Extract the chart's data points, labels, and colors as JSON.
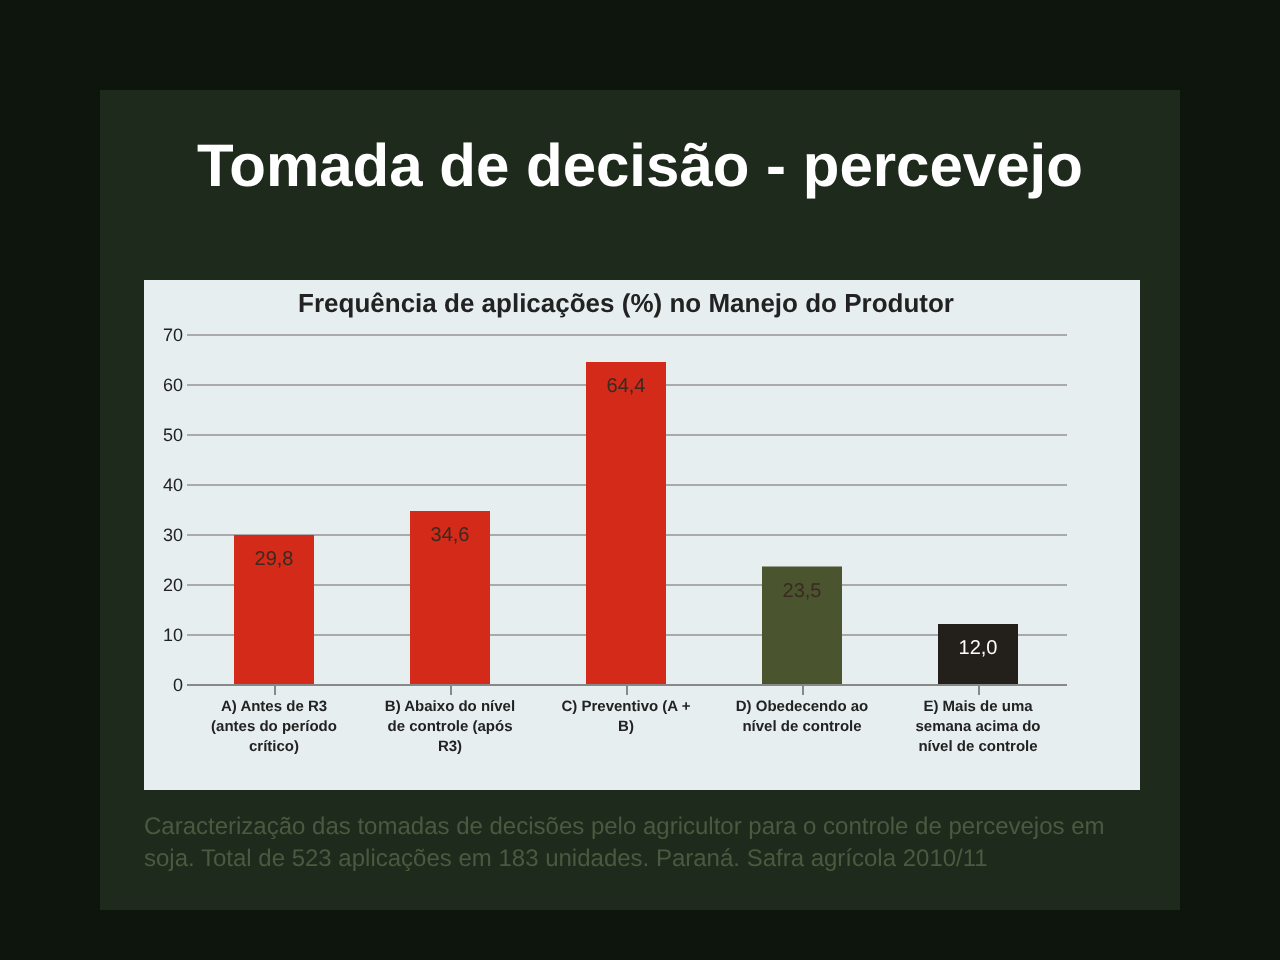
{
  "chart_data": {
    "type": "bar",
    "title": "Tomada de decisão - percevejo",
    "subtitle": "Frequência de aplicações (%) no Manejo do Produtor",
    "categories": [
      "A) Antes de R3 (antes do período crítico)",
      "B) Abaixo do nível de controle (após R3)",
      "C) Preventivo (A + B)",
      "D) Obedecendo ao nível de controle",
      "E) Mais de uma semana acima do nível de controle"
    ],
    "values": [
      29.8,
      34.6,
      64.4,
      23.5,
      12.0
    ],
    "value_labels": [
      "29,8",
      "34,6",
      "64,4",
      "23,5",
      "12,0"
    ],
    "colors": [
      "#d42a1a",
      "#d42a1a",
      "#d42a1a",
      "#4a5530",
      "#231f1a"
    ],
    "ylim": [
      0,
      70
    ],
    "yticks": [
      0,
      10,
      20,
      30,
      40,
      50,
      60,
      70
    ],
    "grid": "y",
    "annotations": [
      "Caracterização das tomadas de decisões pelo agricultor para o controle de percevejos em soja. Total de 523 aplicações em 183 unidades. Paraná. Safra agrícola 2010/11"
    ]
  }
}
